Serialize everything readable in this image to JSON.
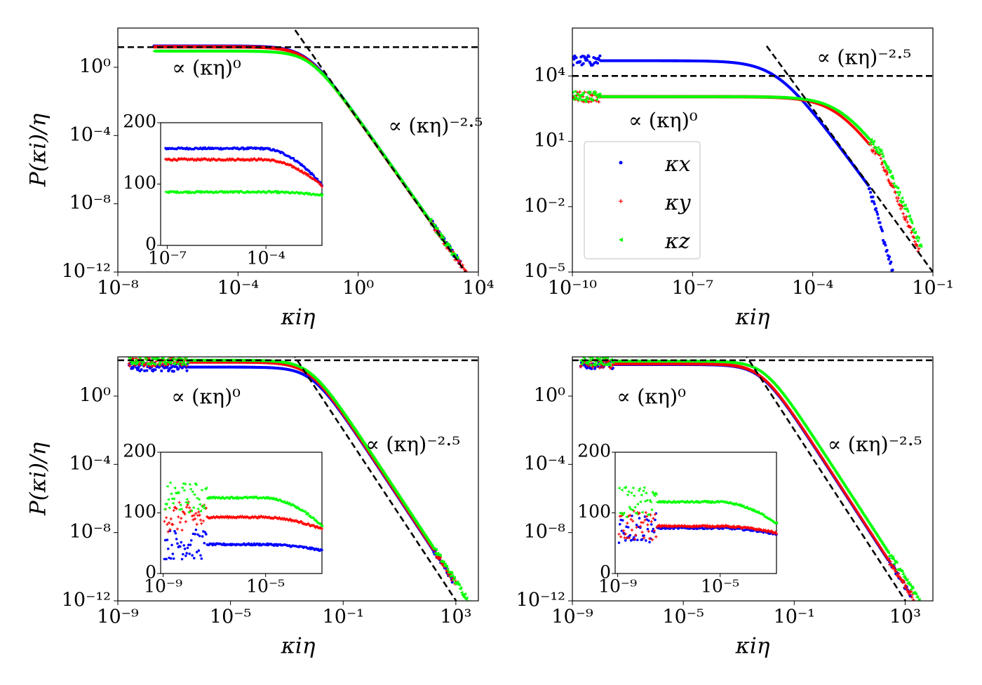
{
  "colors": {
    "kx": "#0000ff",
    "ky": "#ff0000",
    "kz": "#00ff00",
    "fit": "#000000"
  },
  "chart_data": [
    {
      "type": "scatter",
      "scale": "log-log",
      "xlabel": "κiη",
      "ylabel": "P(κi)/η",
      "xlim_exp": [
        -8,
        4
      ],
      "ylim_exp": [
        -12,
        2.3
      ],
      "xticks": [
        {
          "e": -8,
          "label": "10⁻⁸"
        },
        {
          "e": -4,
          "label": "10⁻⁴"
        },
        {
          "e": 0,
          "label": "10⁰"
        },
        {
          "e": 4,
          "label": "10⁴"
        }
      ],
      "yticks": [
        {
          "e": -12,
          "label": "10⁻¹²"
        },
        {
          "e": -8,
          "label": "10⁻⁸"
        },
        {
          "e": -4,
          "label": "10⁻⁴"
        },
        {
          "e": 0,
          "label": "10⁰"
        }
      ],
      "hline_exp": 1.18,
      "slope_line": {
        "slope": -2.5,
        "anchor": [
          -1.7,
          1.18
        ],
        "x_exp": [
          -2.1,
          3.8
        ]
      },
      "series": [
        {
          "name": "κx",
          "color_key": "kx",
          "x_start_exp": -6.8,
          "x_end_exp": 3.4,
          "plateau_exp": 1.25,
          "knee_exp": -1.7
        },
        {
          "name": "κy",
          "color_key": "ky",
          "x_start_exp": -6.8,
          "x_end_exp": 3.7,
          "plateau_exp": 1.2,
          "knee_exp": -1.7
        },
        {
          "name": "κz",
          "color_key": "kz",
          "x_start_exp": -6.8,
          "x_end_exp": 3.3,
          "plateau_exp": 0.95,
          "knee_exp": -1.6
        }
      ],
      "annotations": [
        {
          "text": "∝ (κη)⁰",
          "anchor": [
            -6.2,
            -0.1
          ]
        },
        {
          "text": "∝ (κη)⁻²·⁵",
          "anchor": [
            1.0,
            -3.5
          ]
        }
      ],
      "inset": {
        "xlim_exp": [
          -7.2,
          -2.3
        ],
        "ylim": [
          0,
          200
        ],
        "xticks": [
          {
            "e": -7,
            "label": "10⁻⁷"
          },
          {
            "e": -4,
            "label": "10⁻⁴"
          }
        ],
        "yticks": [
          {
            "v": 0,
            "label": "0"
          },
          {
            "v": 100,
            "label": "100"
          },
          {
            "v": 200,
            "label": "200"
          }
        ],
        "series": [
          {
            "color_key": "kx",
            "level": 158,
            "end": 98
          },
          {
            "color_key": "ky",
            "level": 140,
            "end": 97
          },
          {
            "color_key": "kz",
            "level": 87,
            "end": 82
          }
        ]
      }
    },
    {
      "type": "scatter",
      "scale": "log-log",
      "xlabel": "κiη",
      "ylabel": "",
      "xlim_exp": [
        -10,
        -1
      ],
      "ylim_exp": [
        -5,
        6.2
      ],
      "xticks": [
        {
          "e": -10,
          "label": "10⁻¹⁰"
        },
        {
          "e": -7,
          "label": "10⁻⁷"
        },
        {
          "e": -4,
          "label": "10⁻⁴"
        },
        {
          "e": -1,
          "label": "10⁻¹"
        }
      ],
      "yticks": [
        {
          "e": -5,
          "label": "10⁻⁵"
        },
        {
          "e": -2,
          "label": "10⁻²"
        },
        {
          "e": 1,
          "label": "10¹"
        },
        {
          "e": 4,
          "label": "10⁴"
        }
      ],
      "hline_exp": 4.0,
      "slope_line": {
        "slope": -2.5,
        "anchor": [
          -4.22,
          3.05
        ],
        "x_exp": [
          -5.15,
          -1.0
        ]
      },
      "series": [
        {
          "name": "κx",
          "color_key": "kx",
          "x_start_exp": -10.0,
          "x_end_exp": -1.73,
          "plateau_exp": 4.7,
          "knee_exp": -4.9,
          "steep_from": -2.6,
          "steep_slope": -6.5
        },
        {
          "name": "κy",
          "color_key": "ky",
          "x_start_exp": -10.0,
          "x_end_exp": -1.35,
          "plateau_exp": 3.05,
          "knee_exp": -3.4,
          "steep_from": -2.3,
          "steep_slope": -4.5
        },
        {
          "name": "κz",
          "color_key": "kz",
          "x_start_exp": -10.0,
          "x_end_exp": -1.3,
          "plateau_exp": 3.05,
          "knee_exp": -3.3,
          "steep_from": -2.25,
          "steep_slope": -4.5
        }
      ],
      "annotations": [
        {
          "text": "∝ (κη)⁰",
          "anchor": [
            -8.6,
            1.9
          ]
        },
        {
          "text": "∝ (κη)⁻²·⁵",
          "anchor": [
            -3.9,
            4.8
          ]
        }
      ],
      "legend": {
        "position": "center-left",
        "entries": [
          {
            "label": "κx",
            "color_key": "kx",
            "marker": "dot"
          },
          {
            "label": "κy",
            "color_key": "ky",
            "marker": "plus"
          },
          {
            "label": "κz",
            "color_key": "kz",
            "marker": "tri"
          }
        ]
      }
    },
    {
      "type": "scatter",
      "scale": "log-log",
      "xlabel": "κiη",
      "ylabel": "P(κi)/η",
      "xlim_exp": [
        -9,
        3.8
      ],
      "ylim_exp": [
        -12,
        2.3
      ],
      "xticks": [
        {
          "e": -9,
          "label": "10⁻⁹"
        },
        {
          "e": -5,
          "label": "10⁻⁵"
        },
        {
          "e": -1,
          "label": "10⁻¹"
        },
        {
          "e": 3,
          "label": "10³"
        }
      ],
      "yticks": [
        {
          "e": -12,
          "label": "10⁻¹²"
        },
        {
          "e": -8,
          "label": "10⁻⁸"
        },
        {
          "e": -4,
          "label": "10⁻⁴"
        },
        {
          "e": 0,
          "label": "10⁰"
        }
      ],
      "hline_exp": 2.1,
      "slope_line": {
        "slope": -2.5,
        "anchor": [
          -2.55,
          1.9
        ],
        "x_exp": [
          -3.2,
          3.2
        ]
      },
      "series": [
        {
          "name": "κx",
          "color_key": "kx",
          "x_start_exp": -8.6,
          "x_end_exp": 2.9,
          "plateau_exp": 1.7,
          "knee_exp": -2.1,
          "noisy_until": -6.5
        },
        {
          "name": "κy",
          "color_key": "ky",
          "x_start_exp": -8.6,
          "x_end_exp": 3.0,
          "plateau_exp": 2.0,
          "knee_exp": -2.2,
          "noisy_until": -6.5
        },
        {
          "name": "κz",
          "color_key": "kz",
          "x_start_exp": -8.6,
          "x_end_exp": 3.7,
          "plateau_exp": 2.1,
          "knee_exp": -2.2,
          "noisy_until": -6.5
        }
      ],
      "annotations": [
        {
          "text": "∝ (κη)⁰",
          "anchor": [
            -7.1,
            -0.1
          ]
        },
        {
          "text": "∝ (κη)⁻²·⁵",
          "anchor": [
            -0.2,
            -2.9
          ]
        }
      ],
      "inset": {
        "xlim_exp": [
          -9.1,
          -2.8
        ],
        "ylim": [
          0,
          200
        ],
        "xticks": [
          {
            "e": -9,
            "label": "10⁻⁹"
          },
          {
            "e": -5,
            "label": "10⁻⁵"
          }
        ],
        "yticks": [
          {
            "v": 0,
            "label": "0"
          },
          {
            "v": 100,
            "label": "100"
          },
          {
            "v": 200,
            "label": "200"
          }
        ],
        "noisy_until": -7.3,
        "series": [
          {
            "color_key": "kx",
            "level": 48,
            "end": 38
          },
          {
            "color_key": "ky",
            "level": 93,
            "end": 73
          },
          {
            "color_key": "kz",
            "level": 125,
            "end": 78
          }
        ]
      }
    },
    {
      "type": "scatter",
      "scale": "log-log",
      "xlabel": "κiη",
      "ylabel": "",
      "xlim_exp": [
        -9,
        4.0
      ],
      "ylim_exp": [
        -12,
        2.3
      ],
      "xticks": [
        {
          "e": -9,
          "label": "10⁻⁹"
        },
        {
          "e": -5,
          "label": "10⁻⁵"
        },
        {
          "e": -1,
          "label": "10⁻¹"
        },
        {
          "e": 3,
          "label": "10³"
        }
      ],
      "yticks": [
        {
          "e": -12,
          "label": "10⁻¹²"
        },
        {
          "e": -8,
          "label": "10⁻⁸"
        },
        {
          "e": -4,
          "label": "10⁻⁴"
        },
        {
          "e": 0,
          "label": "10⁰"
        }
      ],
      "hline_exp": 2.1,
      "slope_line": {
        "slope": -2.5,
        "anchor": [
          -2.55,
          1.9
        ],
        "x_exp": [
          -3.2,
          3.3
        ]
      },
      "series": [
        {
          "name": "κx",
          "color_key": "kx",
          "x_start_exp": -8.7,
          "x_end_exp": 3.2,
          "plateau_exp": 1.85,
          "knee_exp": -2.2,
          "noisy_until": -7.5
        },
        {
          "name": "κy",
          "color_key": "ky",
          "x_start_exp": -8.7,
          "x_end_exp": 3.3,
          "plateau_exp": 1.9,
          "knee_exp": -2.2,
          "noisy_until": -7.5
        },
        {
          "name": "κz",
          "color_key": "kz",
          "x_start_exp": -8.7,
          "x_end_exp": 3.5,
          "plateau_exp": 2.05,
          "knee_exp": -2.1,
          "noisy_until": -7.5
        }
      ],
      "annotations": [
        {
          "text": "∝ (κη)⁰",
          "anchor": [
            -7.4,
            -0.1
          ]
        },
        {
          "text": "∝ (κη)⁻²·⁵",
          "anchor": [
            0.2,
            -2.9
          ]
        }
      ],
      "inset": {
        "xlim_exp": [
          -9.1,
          -2.8
        ],
        "ylim": [
          0,
          200
        ],
        "xticks": [
          {
            "e": -9,
            "label": "10⁻⁹"
          },
          {
            "e": -5,
            "label": "10⁻⁵"
          }
        ],
        "yticks": [
          {
            "v": 0,
            "label": "0"
          },
          {
            "v": 100,
            "label": "100"
          },
          {
            "v": 200,
            "label": "200"
          }
        ],
        "noisy_until": -7.5,
        "series": [
          {
            "color_key": "kx",
            "level": 75,
            "end": 65
          },
          {
            "color_key": "ky",
            "level": 78,
            "end": 67
          },
          {
            "color_key": "kz",
            "level": 118,
            "end": 82
          }
        ]
      }
    }
  ]
}
